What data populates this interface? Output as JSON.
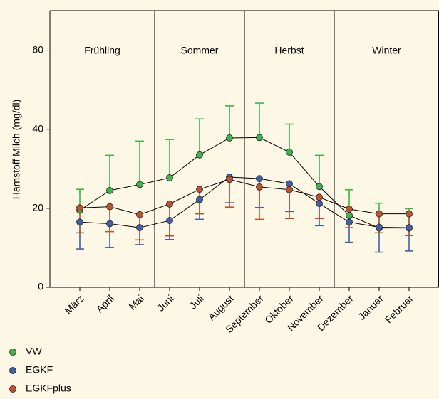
{
  "chart_data": {
    "type": "line",
    "y_label": "Harnstoff Milch (mg/dl)",
    "categories": [
      "März",
      "April",
      "Mai",
      "Juni",
      "Juli",
      "August",
      "September",
      "Oktober",
      "November",
      "Dezember",
      "Januar",
      "Februar"
    ],
    "seasons": [
      "Frühling",
      "Sommer",
      "Herbst",
      "Winter"
    ],
    "ylim": [
      0,
      70
    ],
    "yticks": [
      0,
      20,
      40,
      60
    ],
    "line_color": "#000000",
    "series": [
      {
        "name": "VW",
        "color": "#3cb54a",
        "error_direction": "up",
        "values": [
          19.5,
          24.5,
          26,
          27.7,
          33.5,
          37.8,
          37.9,
          34.2,
          25.5,
          18.2,
          15,
          15
        ],
        "errors": [
          5.3,
          8.9,
          11,
          9.7,
          9.1,
          8.1,
          8.7,
          7.1,
          7.9,
          6.5,
          6.3,
          4.9
        ]
      },
      {
        "name": "EGKF",
        "color": "#3f5fa8",
        "error_direction": "down",
        "values": [
          16.5,
          16.1,
          15.1,
          16.9,
          22.2,
          27.9,
          27.5,
          26.2,
          21.2,
          16.5,
          15.2,
          15.1
        ],
        "errors": [
          6.8,
          6,
          4.3,
          4.8,
          5,
          6.5,
          7.3,
          7,
          5.6,
          5.1,
          6.3,
          5.9
        ]
      },
      {
        "name": "EGKFplus",
        "color": "#c0532e",
        "error_direction": "down",
        "values": [
          20.1,
          20.4,
          18.4,
          21.1,
          24.8,
          27.3,
          25.4,
          24.7,
          22.8,
          19.8,
          18.6,
          18.6
        ],
        "errors": [
          6.3,
          6.3,
          6.4,
          8.1,
          6.2,
          7,
          8.2,
          7.3,
          5.4,
          4.7,
          4.8,
          5.5
        ]
      }
    ]
  }
}
